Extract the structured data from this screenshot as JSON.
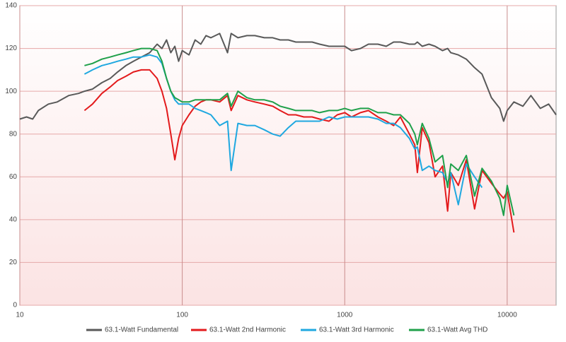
{
  "chart_data": {
    "type": "line",
    "xscale": "log",
    "grid": true,
    "legend": "bottom",
    "x": [
      10,
      11,
      12,
      13,
      15,
      17,
      20,
      23,
      25,
      28,
      32,
      36,
      40,
      45,
      50,
      56,
      63,
      70,
      75,
      80,
      85,
      90,
      95,
      100,
      110,
      120,
      130,
      140,
      150,
      170,
      190,
      200,
      220,
      250,
      280,
      320,
      360,
      400,
      450,
      500,
      560,
      630,
      700,
      800,
      900,
      1000,
      1100,
      1250,
      1400,
      1600,
      1800,
      2000,
      2200,
      2500,
      2700,
      2800,
      3000,
      3300,
      3600,
      4000,
      4300,
      4500,
      5000,
      5600,
      6300,
      7000,
      8000,
      9000,
      9500,
      10000,
      11000,
      12500,
      14000,
      16000,
      18000,
      20000
    ],
    "xlim": [
      10,
      20000
    ],
    "xticks": [
      10,
      100,
      1000,
      10000
    ],
    "ylim": [
      0,
      140
    ],
    "yticks": [
      0,
      20,
      40,
      60,
      80,
      100,
      120,
      140
    ],
    "series": [
      {
        "name": "63.1-Watt Fundamental",
        "color": "#595959",
        "values": [
          87,
          88,
          87,
          91,
          94,
          95,
          98,
          99,
          100,
          101,
          104,
          106,
          109,
          112,
          114,
          116,
          118,
          122,
          120,
          124,
          118,
          121,
          114,
          119,
          117,
          124,
          122,
          126,
          125,
          127,
          118,
          127,
          125,
          126,
          126,
          125,
          125,
          124,
          124,
          123,
          123,
          123,
          122,
          121,
          121,
          121,
          119,
          120,
          122,
          122,
          121,
          123,
          123,
          122,
          122,
          123,
          121,
          122,
          121,
          119,
          120,
          118,
          117,
          115,
          111,
          108,
          97,
          92,
          86,
          91,
          95,
          93,
          98,
          92,
          94,
          89
        ]
      },
      {
        "name": "63.1-Watt 2nd Harmonic",
        "color": "#e31a1c",
        "values": [
          null,
          null,
          null,
          null,
          null,
          null,
          null,
          null,
          91,
          94,
          99,
          102,
          105,
          107,
          109,
          110,
          110,
          106,
          100,
          92,
          80,
          68,
          78,
          84,
          89,
          93,
          95,
          96,
          96,
          95,
          98,
          91,
          98,
          96,
          95,
          94,
          93,
          91,
          89,
          89,
          88,
          88,
          87,
          86,
          89,
          90,
          88,
          90,
          91,
          88,
          86,
          84,
          88,
          80,
          75,
          62,
          83,
          76,
          60,
          65,
          44,
          62,
          56,
          68,
          45,
          63,
          57,
          52,
          50,
          53,
          34,
          null,
          null,
          null,
          null,
          null
        ]
      },
      {
        "name": "63.1-Watt 3rd Harmonic",
        "color": "#1fa8e0",
        "values": [
          null,
          null,
          null,
          null,
          null,
          null,
          null,
          null,
          108,
          110,
          112,
          113,
          114,
          115,
          116,
          116,
          117,
          116,
          113,
          106,
          100,
          96,
          94,
          94,
          94,
          92,
          91,
          90,
          89,
          84,
          86,
          63,
          85,
          84,
          84,
          82,
          80,
          79,
          83,
          86,
          86,
          86,
          86,
          88,
          87,
          88,
          88,
          88,
          88,
          87,
          85,
          85,
          83,
          78,
          73,
          74,
          63,
          65,
          63,
          62,
          57,
          62,
          47,
          66,
          60,
          55,
          null,
          null,
          null,
          null,
          null,
          null,
          null,
          null,
          null,
          null
        ]
      },
      {
        "name": "63.1-Watt Avg THD",
        "color": "#1fa04a",
        "values": [
          null,
          null,
          null,
          null,
          null,
          null,
          null,
          null,
          112,
          113,
          115,
          116,
          117,
          118,
          119,
          120,
          120,
          119,
          114,
          106,
          100,
          97,
          96,
          95,
          95,
          96,
          96,
          96,
          96,
          96,
          99,
          93,
          100,
          97,
          96,
          96,
          95,
          93,
          92,
          91,
          91,
          91,
          90,
          91,
          91,
          92,
          91,
          92,
          92,
          90,
          90,
          89,
          89,
          85,
          80,
          75,
          85,
          78,
          67,
          70,
          55,
          66,
          63,
          70,
          51,
          64,
          58,
          50,
          42,
          56,
          42,
          null,
          null,
          null,
          null,
          null
        ]
      }
    ]
  }
}
